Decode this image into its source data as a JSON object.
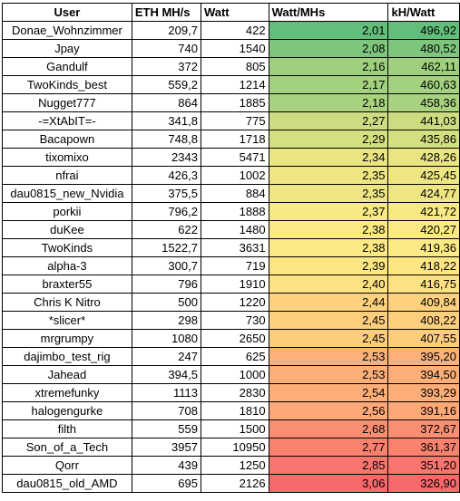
{
  "headers": [
    "User",
    "ETH MH/s",
    "Watt",
    "Watt/MHs",
    "kH/Watt"
  ],
  "rows": [
    {
      "user": "Donae_Wohnzimmer",
      "eth": "209,7",
      "watt": "422",
      "wpm": "2,01",
      "khw": "496,92",
      "wpm_color": "#63be7b",
      "khw_color": "#63be7b"
    },
    {
      "user": "Jpay",
      "eth": "740",
      "watt": "1540",
      "wpm": "2,08",
      "khw": "480,52",
      "wpm_color": "#7fc67d",
      "khw_color": "#7fc67d"
    },
    {
      "user": "Gandulf",
      "eth": "372",
      "watt": "805",
      "wpm": "2,16",
      "khw": "462,11",
      "wpm_color": "#a0d07f",
      "khw_color": "#a0d07f"
    },
    {
      "user": "TwoKinds_best",
      "eth": "559,2",
      "watt": "1214",
      "wpm": "2,17",
      "khw": "460,63",
      "wpm_color": "#a4d17f",
      "khw_color": "#a4d17f"
    },
    {
      "user": "Nugget777",
      "eth": "864",
      "watt": "1885",
      "wpm": "2,18",
      "khw": "458,36",
      "wpm_color": "#a8d27f",
      "khw_color": "#a8d27f"
    },
    {
      "user": "-=XtAbIT=-",
      "eth": "341,8",
      "watt": "775",
      "wpm": "2,27",
      "khw": "441,03",
      "wpm_color": "#cbdc81",
      "khw_color": "#cbdc81"
    },
    {
      "user": "Bacapown",
      "eth": "748,8",
      "watt": "1718",
      "wpm": "2,29",
      "khw": "435,86",
      "wpm_color": "#d4df81",
      "khw_color": "#d4df81"
    },
    {
      "user": "tixomixo",
      "eth": "2343",
      "watt": "5471",
      "wpm": "2,34",
      "khw": "428,26",
      "wpm_color": "#e9e582",
      "khw_color": "#e9e582"
    },
    {
      "user": "nfrai",
      "eth": "426,3",
      "watt": "1002",
      "wpm": "2,35",
      "khw": "425,45",
      "wpm_color": "#ede683",
      "khw_color": "#ede683"
    },
    {
      "user": "dau0815_new_Nvidia",
      "eth": "375,5",
      "watt": "884",
      "wpm": "2,35",
      "khw": "424,77",
      "wpm_color": "#eee683",
      "khw_color": "#eee683"
    },
    {
      "user": "porkii",
      "eth": "796,2",
      "watt": "1888",
      "wpm": "2,37",
      "khw": "421,72",
      "wpm_color": "#f7e984",
      "khw_color": "#f7e984"
    },
    {
      "user": "duKee",
      "eth": "622",
      "watt": "1480",
      "wpm": "2,38",
      "khw": "420,27",
      "wpm_color": "#fbea84",
      "khw_color": "#fbea84"
    },
    {
      "user": "TwoKinds",
      "eth": "1522,7",
      "watt": "3631",
      "wpm": "2,38",
      "khw": "419,36",
      "wpm_color": "#fdea84",
      "khw_color": "#fdea84"
    },
    {
      "user": "alpha-3",
      "eth": "300,7",
      "watt": "719",
      "wpm": "2,39",
      "khw": "418,22",
      "wpm_color": "#fee783",
      "khw_color": "#fee783"
    },
    {
      "user": "braxter55",
      "eth": "796",
      "watt": "1910",
      "wpm": "2,40",
      "khw": "416,75",
      "wpm_color": "#fee182",
      "khw_color": "#fee182"
    },
    {
      "user": "Chris K Nitro",
      "eth": "500",
      "watt": "1220",
      "wpm": "2,44",
      "khw": "409,84",
      "wpm_color": "#fdd17f",
      "khw_color": "#fdd17f"
    },
    {
      "user": "*slicer*",
      "eth": "298",
      "watt": "730",
      "wpm": "2,45",
      "khw": "408,22",
      "wpm_color": "#fdce7e",
      "khw_color": "#fdce7e"
    },
    {
      "user": "mrgrumpy",
      "eth": "1080",
      "watt": "2650",
      "wpm": "2,45",
      "khw": "407,55",
      "wpm_color": "#fdcd7e",
      "khw_color": "#fdcd7e"
    },
    {
      "user": "dajimbo_test_rig",
      "eth": "247",
      "watt": "625",
      "wpm": "2,53",
      "khw": "395,20",
      "wpm_color": "#fcb179",
      "khw_color": "#fcb179"
    },
    {
      "user": "Jahead",
      "eth": "394,5",
      "watt": "1000",
      "wpm": "2,53",
      "khw": "394,50",
      "wpm_color": "#fcaf79",
      "khw_color": "#fcaf79"
    },
    {
      "user": "xtremefunky",
      "eth": "1113",
      "watt": "2830",
      "wpm": "2,54",
      "khw": "393,29",
      "wpm_color": "#fcad78",
      "khw_color": "#fcad78"
    },
    {
      "user": "halogengurke",
      "eth": "708",
      "watt": "1810",
      "wpm": "2,56",
      "khw": "391,16",
      "wpm_color": "#fca877",
      "khw_color": "#fca877"
    },
    {
      "user": "filth",
      "eth": "559",
      "watt": "1500",
      "wpm": "2,68",
      "khw": "372,67",
      "wpm_color": "#fa8e72",
      "khw_color": "#fa8e72"
    },
    {
      "user": "Son_of_a_Tech",
      "eth": "3957",
      "watt": "10950",
      "wpm": "2,77",
      "khw": "361,37",
      "wpm_color": "#f9826f",
      "khw_color": "#f9826f"
    },
    {
      "user": "Qorr",
      "eth": "439",
      "watt": "1250",
      "wpm": "2,85",
      "khw": "351,20",
      "wpm_color": "#f8766d",
      "khw_color": "#f8766d"
    },
    {
      "user": "dau0815_old_AMD",
      "eth": "695",
      "watt": "2126",
      "wpm": "3,06",
      "khw": "326,90",
      "wpm_color": "#f8696b",
      "khw_color": "#f8696b"
    }
  ]
}
